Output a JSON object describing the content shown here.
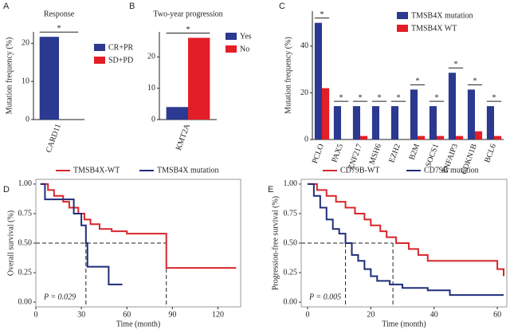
{
  "chart_data": [
    {
      "type": "bar",
      "panel": "A",
      "title": "Response",
      "ylabel": "Mutation frequency (%)",
      "categories": [
        "CARD11"
      ],
      "series": [
        {
          "name": "CR+PR",
          "color": "#2b3990",
          "values": [
            21.7
          ]
        },
        {
          "name": "SD+PD",
          "color": "#e41e26",
          "values": [
            0
          ]
        }
      ],
      "significance": [
        "*"
      ],
      "ylim": [
        0,
        23
      ],
      "yticks": [
        0,
        10,
        20
      ]
    },
    {
      "type": "bar",
      "panel": "B",
      "title": "Two-year progression",
      "categories": [
        "KMT2A"
      ],
      "series": [
        {
          "name": "Yes",
          "color": "#2b3990",
          "values": [
            4
          ]
        },
        {
          "name": "No",
          "color": "#e41e26",
          "values": [
            26.1
          ]
        }
      ],
      "significance": [
        "*"
      ],
      "ylim": [
        0,
        28
      ],
      "yticks": [
        0,
        10,
        20
      ]
    },
    {
      "type": "bar",
      "panel": "C",
      "ylabel": "Mutation frequency (%)",
      "categories": [
        "PCLO",
        "PAX5",
        "ZNF217",
        "MSH6",
        "EZH2",
        "B2M",
        "SOCS1",
        "TNFAIP3",
        "CDKN1B",
        "BCL6"
      ],
      "series": [
        {
          "name": "TMSB4X mutation",
          "color": "#2b3990",
          "values": [
            50,
            14.3,
            14.3,
            14.3,
            14.3,
            21.4,
            14.3,
            28.6,
            21.4,
            14.3
          ]
        },
        {
          "name": "TMSB4X WT",
          "color": "#e41e26",
          "values": [
            22,
            0,
            1.5,
            0,
            0,
            1.5,
            1.5,
            1.5,
            3.5,
            1.5
          ]
        }
      ],
      "significance": [
        "*",
        "*",
        "*",
        "*",
        "*",
        "*",
        "*",
        "*",
        "*",
        "*"
      ],
      "ylim": [
        0,
        55
      ],
      "yticks": [
        0,
        20,
        40
      ]
    },
    {
      "type": "line",
      "panel": "D",
      "step": true,
      "xlabel": "Time (month)",
      "ylabel": "Overall survival (%)",
      "annotation": "P = 0.029",
      "series": [
        {
          "name": "TMSB4X-WT",
          "color": "#d7262c",
          "x": [
            3,
            8,
            12,
            18,
            22,
            28,
            32,
            36,
            42,
            50,
            60,
            86,
            132
          ],
          "values": [
            1.0,
            0.95,
            0.9,
            0.85,
            0.8,
            0.75,
            0.7,
            0.66,
            0.62,
            0.6,
            0.58,
            0.29,
            0.29
          ]
        },
        {
          "name": "TMSB4X mutation",
          "color": "#1f2d7a",
          "x": [
            3,
            6,
            25,
            30,
            33,
            34,
            48,
            57
          ],
          "values": [
            1.0,
            0.87,
            0.75,
            0.65,
            0.5,
            0.3,
            0.15,
            0.15
          ]
        }
      ],
      "median_x": [
        33,
        86
      ],
      "median_y": 0.5,
      "xlim": [
        0,
        135
      ],
      "ylim": [
        -0.04,
        1.04
      ],
      "xticks": [
        0,
        30,
        60,
        90,
        120
      ],
      "yticks": [
        {
          "value": 0,
          "label": "0.00"
        },
        0.25,
        {
          "value": 0.5,
          "label": "0.50"
        },
        0.75,
        {
          "value": 1,
          "label": "1.00"
        }
      ]
    },
    {
      "type": "line",
      "panel": "E",
      "step": true,
      "xlabel": "Time (month)",
      "ylabel": "Progression-free survival (%)",
      "annotation": "P = 0.005",
      "series": [
        {
          "name": "CD79B-WT",
          "color": "#d7262c",
          "x": [
            0,
            3,
            6,
            9,
            12,
            15,
            18,
            20,
            23,
            25,
            28,
            32,
            35,
            38,
            60,
            62
          ],
          "values": [
            1.0,
            0.95,
            0.9,
            0.85,
            0.8,
            0.75,
            0.7,
            0.65,
            0.6,
            0.55,
            0.5,
            0.45,
            0.4,
            0.35,
            0.28,
            0.22
          ]
        },
        {
          "name": "CD79B mutation",
          "color": "#1f2d7a",
          "x": [
            0,
            2,
            4,
            6,
            8,
            10,
            12,
            14,
            16,
            18,
            20,
            22,
            26,
            30,
            38,
            45,
            62
          ],
          "values": [
            1.0,
            0.9,
            0.8,
            0.7,
            0.62,
            0.58,
            0.5,
            0.4,
            0.35,
            0.28,
            0.22,
            0.18,
            0.15,
            0.12,
            0.1,
            0.06,
            0.06
          ]
        }
      ],
      "median_x": [
        12,
        27
      ],
      "median_y": 0.5,
      "xlim": [
        -2,
        63
      ],
      "ylim": [
        -0.04,
        1.04
      ],
      "xticks": [
        0,
        20,
        40,
        60
      ],
      "yticks": [
        {
          "value": 0,
          "label": "0.00"
        },
        0.25,
        {
          "value": 0.5,
          "label": "0.50"
        },
        0.75,
        {
          "value": 1,
          "label": "1.00"
        }
      ]
    }
  ]
}
